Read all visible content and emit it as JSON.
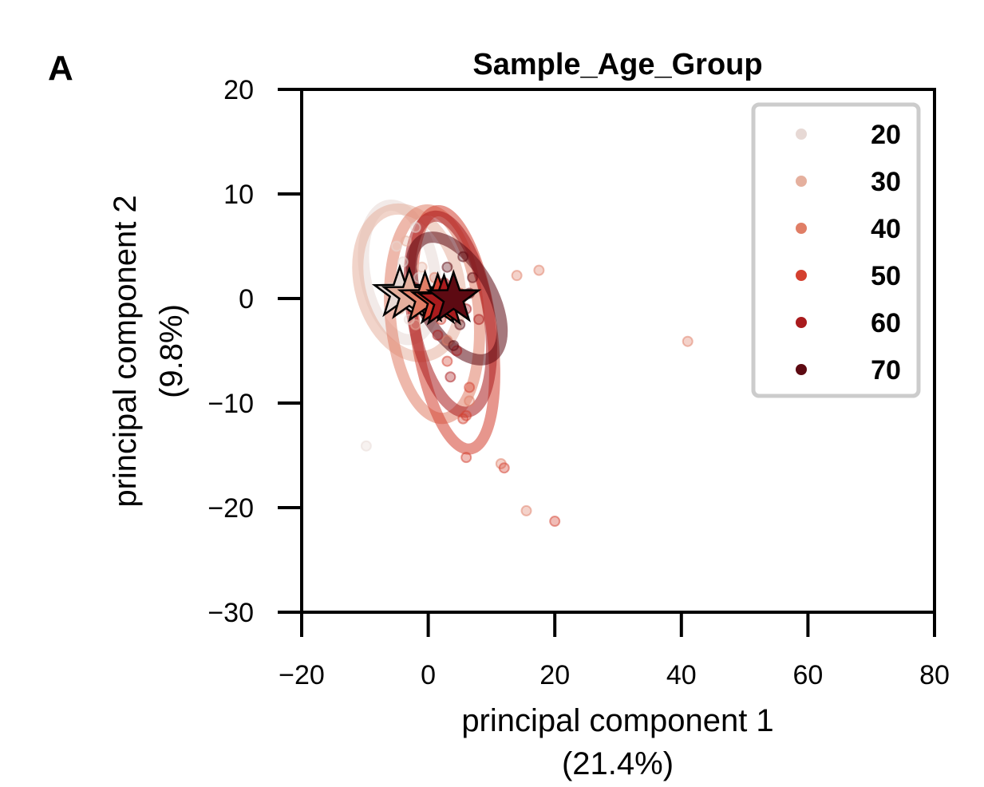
{
  "panel_label": "A",
  "chart_data": {
    "type": "scatter",
    "title": "Sample_Age_Group",
    "xlabel": "principal component 1",
    "xlabel_pct": "(21.4%)",
    "ylabel": "principal component 2",
    "ylabel_pct": "(9.8%)",
    "xlim": [
      -20,
      80
    ],
    "ylim": [
      -30,
      20
    ],
    "xticks": [
      -20,
      0,
      20,
      40,
      60,
      80
    ],
    "xtick_labels": [
      "−20",
      "0",
      "20",
      "40",
      "60",
      "80"
    ],
    "yticks": [
      20,
      10,
      0,
      -10,
      -20,
      -30
    ],
    "ytick_labels": [
      "20",
      "10",
      "0",
      "−10",
      "−20",
      "−30"
    ],
    "legend_position": "top-right",
    "grid": false,
    "series": [
      {
        "name": "20",
        "color": "#e7d9d5",
        "centroid": [
          -4.5,
          0.5
        ],
        "ellipse": {
          "cx": -4.5,
          "cy": 2.5,
          "rx": 5.5,
          "ry": 6.5,
          "angle_deg": 10
        },
        "points": [
          [
            -9.8,
            -14.1
          ],
          [
            -2.0,
            6.8
          ],
          [
            -4.0,
            3.5
          ],
          [
            -6.0,
            1.0
          ],
          [
            -3.0,
            -2.0
          ],
          [
            -1.5,
            2.0
          ],
          [
            -5.0,
            5.0
          ]
        ]
      },
      {
        "name": "30",
        "color": "#e5b09e",
        "centroid": [
          -3.0,
          0.3
        ],
        "ellipse": {
          "cx": -3.0,
          "cy": 1.5,
          "rx": 7.8,
          "ry": 7.2,
          "angle_deg": 15
        },
        "points": [
          [
            -3.5,
            5.5
          ],
          [
            -1.0,
            3.0
          ],
          [
            -4.5,
            -1.0
          ],
          [
            0.0,
            0.5
          ],
          [
            -2.0,
            -2.5
          ]
        ]
      },
      {
        "name": "40",
        "color": "#e07e66",
        "centroid": [
          -0.5,
          0.0
        ],
        "ellipse": {
          "cx": 1.0,
          "cy": -1.5,
          "rx": 7.0,
          "ry": 10.0,
          "angle_deg": 5
        },
        "points": [
          [
            17.5,
            2.7
          ],
          [
            14.0,
            2.2
          ],
          [
            41.0,
            -4.1
          ],
          [
            15.5,
            -20.3
          ],
          [
            11.5,
            -15.8
          ],
          [
            1.0,
            2.0
          ],
          [
            3.0,
            -4.0
          ],
          [
            6.5,
            -9.8
          ]
        ]
      },
      {
        "name": "50",
        "color": "#d4402f",
        "centroid": [
          1.5,
          -0.2
        ],
        "ellipse": {
          "cx": 4.0,
          "cy": -3.0,
          "rx": 6.0,
          "ry": 11.5,
          "angle_deg": 8
        },
        "points": [
          [
            12.0,
            -16.2
          ],
          [
            20.0,
            -21.3
          ],
          [
            6.0,
            -15.2
          ],
          [
            5.5,
            -11.5
          ],
          [
            6.0,
            -11.2
          ],
          [
            6.5,
            -8.5
          ],
          [
            3.0,
            -6.0
          ],
          [
            2.0,
            -2.0
          ],
          [
            5.0,
            0.5
          ]
        ]
      },
      {
        "name": "60",
        "color": "#a91b1d",
        "centroid": [
          2.5,
          -0.3
        ],
        "ellipse": {
          "cx": 3.5,
          "cy": -1.5,
          "rx": 6.0,
          "ry": 9.5,
          "angle_deg": 10
        },
        "points": [
          [
            1.5,
            -3.5
          ],
          [
            3.5,
            -7.5
          ],
          [
            4.5,
            -5.0
          ],
          [
            6.0,
            -1.0
          ],
          [
            2.5,
            1.5
          ],
          [
            0.5,
            -1.5
          ],
          [
            8.0,
            -2.0
          ]
        ]
      },
      {
        "name": "70",
        "color": "#5d0a12",
        "centroid": [
          4.0,
          0.0
        ],
        "ellipse": {
          "cx": 4.5,
          "cy": 0.0,
          "rx": 5.5,
          "ry": 6.5,
          "angle_deg": 30
        },
        "points": [
          [
            5.5,
            4.0
          ],
          [
            7.0,
            2.0
          ],
          [
            4.0,
            -4.5
          ],
          [
            6.5,
            0.5
          ],
          [
            3.0,
            3.0
          ],
          [
            5.0,
            -2.5
          ]
        ]
      }
    ]
  }
}
